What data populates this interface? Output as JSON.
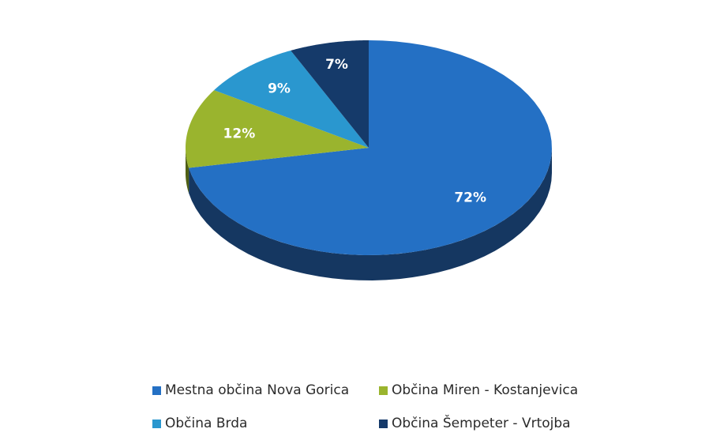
{
  "chart_data": {
    "type": "pie",
    "style": "3d",
    "categories": [
      "Mestna občina Nova Gorica",
      "Občina Miren - Kostanjevica",
      "Občina Brda",
      "Občina Šempeter - Vrtojba"
    ],
    "values": [
      72,
      12,
      9,
      7
    ],
    "labels": [
      "72%",
      "12%",
      "9%",
      "7%"
    ],
    "colors": [
      "#2470c4",
      "#9ab42e",
      "#2a97cf",
      "#153a6a"
    ],
    "side_colors": [
      "#153761",
      "#4f5f14",
      "#175a80",
      "#0b1e38"
    ],
    "legend_placement": "bottom"
  }
}
